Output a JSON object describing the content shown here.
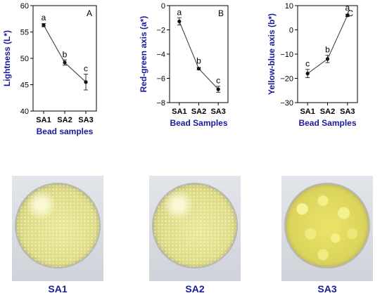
{
  "colors": {
    "axis": "#000000",
    "label": "#1a1a9a",
    "line": "#333333",
    "point": "#111111"
  },
  "chart_data": [
    {
      "type": "line",
      "panel": "A",
      "ylabel": "Lightness (L*)",
      "xlabel": "Bead samples",
      "categories": [
        "SA1",
        "SA2",
        "SA3"
      ],
      "values": [
        56.3,
        49.2,
        45.5
      ],
      "errors": [
        0.3,
        0.5,
        1.5
      ],
      "letters": [
        "a",
        "b",
        "c"
      ],
      "ylim": [
        40,
        60
      ],
      "yticks": [
        "40",
        "45",
        "50",
        "55",
        "60"
      ],
      "ytick_values": [
        40,
        45,
        50,
        55,
        60
      ]
    },
    {
      "type": "line",
      "panel": "B",
      "ylabel": "Red-green axis (a*)",
      "xlabel": "Bead Samples",
      "categories": [
        "SA1",
        "SA2",
        "SA3"
      ],
      "values": [
        -1.3,
        -5.2,
        -6.9
      ],
      "errors": [
        0.3,
        0.1,
        0.25
      ],
      "letters": [
        "a",
        "b",
        "c"
      ],
      "ylim": [
        -8,
        0
      ],
      "yticks": [
        "−8",
        "−6",
        "−4",
        "−2",
        "0"
      ],
      "ytick_values": [
        -8,
        -6,
        -4,
        -2,
        0
      ]
    },
    {
      "type": "line",
      "panel": "C",
      "ylabel": "Yellow-blue axis (b*)",
      "xlabel": "Bead Samples",
      "categories": [
        "SA1",
        "SA2",
        "SA3"
      ],
      "values": [
        -18.0,
        -12.0,
        6.0
      ],
      "errors": [
        1.7,
        1.5,
        0.5
      ],
      "letters": [
        "c",
        "b",
        "a"
      ],
      "ylim": [
        -30,
        10
      ],
      "yticks": [
        "−30",
        "−20",
        "−10",
        "0",
        "10"
      ],
      "ytick_values": [
        -30,
        -20,
        -10,
        0,
        10
      ]
    }
  ],
  "photos": [
    {
      "label": "SA1"
    },
    {
      "label": "SA2"
    },
    {
      "label": "SA3"
    }
  ]
}
